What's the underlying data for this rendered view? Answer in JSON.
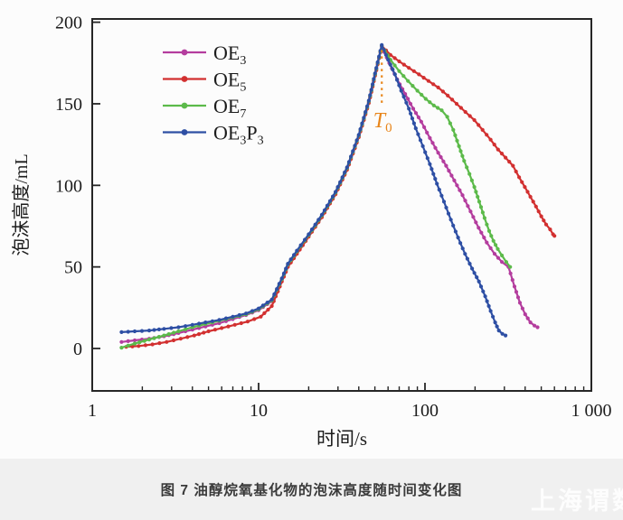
{
  "figure": {
    "caption": "图 7  油醇烷氧基化物的泡沫高度随时间变化图",
    "watermark": "上海谓数"
  },
  "chart_data": {
    "type": "line",
    "title": "",
    "xlabel": "时间/s",
    "ylabel": "泡沫高度/mL",
    "x_scale": "log",
    "xlim": [
      1,
      1000
    ],
    "ylim": [
      -26,
      202
    ],
    "x_ticks": [
      1,
      10,
      100,
      1000
    ],
    "x_tick_labels": [
      "1",
      "10",
      "100",
      "1 000"
    ],
    "y_ticks": [
      0,
      50,
      100,
      150,
      200
    ],
    "grid": false,
    "legend_position": "upper-left-inside",
    "frame_color": "#262626",
    "annotation": {
      "label_main": "T",
      "label_sub": "0",
      "x": 55,
      "line_top_value": 183,
      "line_bottom_value": 150,
      "color": "#e8861b",
      "meaning": "time of maximum foam height ≈ 55 s, peak ≈ 185 mL"
    },
    "series": [
      {
        "name": "OE3",
        "label_parts": [
          [
            "OE",
            "3"
          ]
        ],
        "color": "#b43d9e",
        "points": [
          [
            1.5,
            4
          ],
          [
            1.8,
            5
          ],
          [
            2.2,
            6
          ],
          [
            2.7,
            7.5
          ],
          [
            3.3,
            9.5
          ],
          [
            4,
            11.5
          ],
          [
            4.8,
            13.5
          ],
          [
            5.8,
            15.5
          ],
          [
            7,
            18
          ],
          [
            8.4,
            20.5
          ],
          [
            10,
            23.5
          ],
          [
            12,
            29
          ],
          [
            13.8,
            42
          ],
          [
            15,
            51
          ],
          [
            17,
            59
          ],
          [
            20,
            69
          ],
          [
            24,
            81
          ],
          [
            29,
            95
          ],
          [
            34,
            110
          ],
          [
            40,
            130
          ],
          [
            46,
            151
          ],
          [
            51,
            171
          ],
          [
            55,
            185
          ],
          [
            61,
            175
          ],
          [
            68,
            165
          ],
          [
            76,
            156
          ],
          [
            85,
            147
          ],
          [
            95,
            139
          ],
          [
            107,
            129
          ],
          [
            120,
            120
          ],
          [
            134,
            112
          ],
          [
            150,
            103
          ],
          [
            168,
            94
          ],
          [
            188,
            84
          ],
          [
            210,
            74
          ],
          [
            235,
            65
          ],
          [
            262,
            58
          ],
          [
            290,
            53
          ],
          [
            318,
            50
          ],
          [
            345,
            38
          ],
          [
            372,
            28
          ],
          [
            400,
            21
          ],
          [
            430,
            16
          ],
          [
            455,
            14
          ],
          [
            475,
            13
          ]
        ]
      },
      {
        "name": "OE5",
        "label_parts": [
          [
            "OE",
            "5"
          ]
        ],
        "color": "#d23030",
        "points": [
          [
            1.6,
            1
          ],
          [
            1.9,
            1.5
          ],
          [
            2.3,
            2.5
          ],
          [
            2.8,
            4
          ],
          [
            3.4,
            6
          ],
          [
            4.1,
            8
          ],
          [
            5,
            10.5
          ],
          [
            6,
            12.5
          ],
          [
            7.2,
            14.5
          ],
          [
            8.6,
            16.5
          ],
          [
            10.3,
            19.5
          ],
          [
            12,
            26
          ],
          [
            13.8,
            41
          ],
          [
            15,
            50
          ],
          [
            17,
            58
          ],
          [
            20,
            68.5
          ],
          [
            24,
            80.5
          ],
          [
            29,
            94.5
          ],
          [
            34,
            109.5
          ],
          [
            40,
            129.5
          ],
          [
            46,
            150.5
          ],
          [
            51,
            170.5
          ],
          [
            55,
            185.5
          ],
          [
            62,
            180
          ],
          [
            70,
            176
          ],
          [
            80,
            172
          ],
          [
            92,
            168
          ],
          [
            105,
            164
          ],
          [
            120,
            160
          ],
          [
            137,
            155
          ],
          [
            155,
            150
          ],
          [
            175,
            145
          ],
          [
            198,
            140
          ],
          [
            222,
            134
          ],
          [
            248,
            128
          ],
          [
            275,
            122
          ],
          [
            305,
            117
          ],
          [
            338,
            112
          ],
          [
            368,
            105
          ],
          [
            398,
            99
          ],
          [
            430,
            93
          ],
          [
            465,
            87
          ],
          [
            500,
            81
          ],
          [
            535,
            76
          ],
          [
            565,
            73
          ],
          [
            588,
            70
          ],
          [
            600,
            69
          ]
        ]
      },
      {
        "name": "OE7",
        "label_parts": [
          [
            "OE",
            "7"
          ]
        ],
        "color": "#5cba4a",
        "points": [
          [
            1.5,
            0.5
          ],
          [
            1.8,
            3
          ],
          [
            2.2,
            5.5
          ],
          [
            2.7,
            8
          ],
          [
            3.3,
            10.5
          ],
          [
            4,
            13
          ],
          [
            4.8,
            15
          ],
          [
            5.8,
            17
          ],
          [
            7,
            19
          ],
          [
            8.4,
            21
          ],
          [
            10,
            24
          ],
          [
            12,
            29.5
          ],
          [
            13.8,
            42.5
          ],
          [
            15,
            51.5
          ],
          [
            17,
            59.5
          ],
          [
            20,
            69.5
          ],
          [
            24,
            81.5
          ],
          [
            29,
            95.5
          ],
          [
            34,
            110.5
          ],
          [
            40,
            130.5
          ],
          [
            46,
            151.5
          ],
          [
            51,
            171.5
          ],
          [
            55,
            185.5
          ],
          [
            62,
            177
          ],
          [
            70,
            170
          ],
          [
            79,
            164
          ],
          [
            90,
            158
          ],
          [
            101,
            153
          ],
          [
            113,
            149
          ],
          [
            126,
            146
          ],
          [
            136,
            142
          ],
          [
            148,
            134
          ],
          [
            160,
            124
          ],
          [
            172,
            115
          ],
          [
            185,
            107
          ],
          [
            198,
            99
          ],
          [
            212,
            90
          ],
          [
            228,
            80
          ],
          [
            243,
            72
          ],
          [
            258,
            66
          ],
          [
            274,
            61
          ],
          [
            290,
            57
          ],
          [
            308,
            53
          ],
          [
            325,
            50
          ]
        ]
      },
      {
        "name": "OE3P3",
        "label_parts": [
          [
            "OE",
            "3"
          ],
          [
            "P",
            "3"
          ]
        ],
        "color": "#2e4fa4",
        "points": [
          [
            1.5,
            10
          ],
          [
            1.8,
            10.5
          ],
          [
            2.2,
            11
          ],
          [
            2.7,
            12
          ],
          [
            3.3,
            13
          ],
          [
            4,
            14.5
          ],
          [
            4.8,
            16
          ],
          [
            5.8,
            17.5
          ],
          [
            7,
            19.5
          ],
          [
            8.4,
            21.5
          ],
          [
            10,
            24.5
          ],
          [
            12,
            30
          ],
          [
            13.8,
            43
          ],
          [
            15,
            52
          ],
          [
            17,
            60
          ],
          [
            20,
            70
          ],
          [
            24,
            82
          ],
          [
            29,
            96
          ],
          [
            34,
            111
          ],
          [
            40,
            131
          ],
          [
            46,
            152
          ],
          [
            51,
            172
          ],
          [
            55,
            186
          ],
          [
            60,
            177
          ],
          [
            66,
            168
          ],
          [
            72,
            158
          ],
          [
            80,
            147
          ],
          [
            88,
            135
          ],
          [
            97,
            124
          ],
          [
            107,
            113
          ],
          [
            118,
            101
          ],
          [
            130,
            90
          ],
          [
            143,
            79
          ],
          [
            158,
            68
          ],
          [
            174,
            58
          ],
          [
            192,
            49
          ],
          [
            211,
            41
          ],
          [
            230,
            32
          ],
          [
            248,
            23
          ],
          [
            264,
            16
          ],
          [
            278,
            11
          ],
          [
            292,
            9
          ],
          [
            305,
            8
          ]
        ]
      }
    ]
  }
}
